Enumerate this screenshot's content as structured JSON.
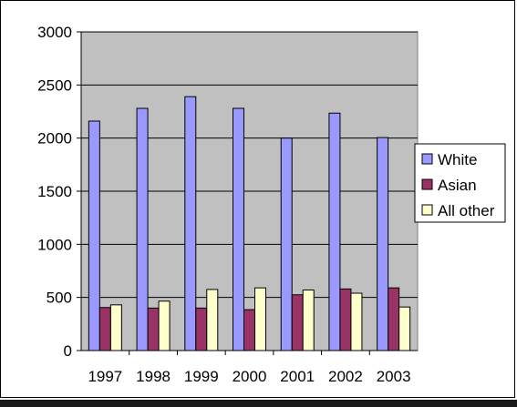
{
  "chart_data": {
    "type": "bar",
    "categories": [
      "1997",
      "1998",
      "1999",
      "2000",
      "2001",
      "2002",
      "2003"
    ],
    "series": [
      {
        "name": "White",
        "color": "#9999ff",
        "values": [
          2160,
          2280,
          2390,
          2280,
          2000,
          2235,
          2005
        ]
      },
      {
        "name": "Asian",
        "color": "#993366",
        "values": [
          405,
          400,
          400,
          385,
          525,
          580,
          590
        ]
      },
      {
        "name": "All other",
        "color": "#ffffcc",
        "values": [
          430,
          465,
          575,
          590,
          570,
          540,
          410
        ]
      }
    ],
    "ylim": [
      0,
      3000
    ],
    "yticks": [
      "0",
      "500",
      "1000",
      "1500",
      "2000",
      "2500",
      "3000"
    ],
    "grid": true,
    "plot_background": "#c0c0c0",
    "legend_position": "right"
  }
}
